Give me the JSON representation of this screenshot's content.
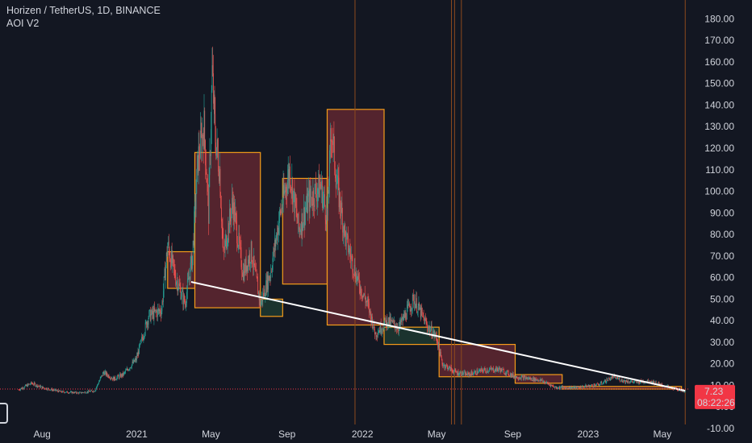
{
  "header": {
    "symbol_line": "Horizen / TetherUS, 1D, BINANCE",
    "indicator_name": "AOI V2"
  },
  "price_label": {
    "value": "7.23",
    "countdown": "08:22:26"
  },
  "colors": {
    "background": "#131722",
    "candle_up": "#26a69a",
    "candle_down": "#ef5350",
    "box_border": "#f59c1a",
    "box_fill_bear": "#6b2a33",
    "box_fill_bull": "#1f3d33",
    "price_badge": "#f23645",
    "trend_line": "#ffffff"
  },
  "icons": {
    "logo": "tradingview-logo-icon"
  },
  "chart_data": {
    "type": "candlestick",
    "title": "Horizen / TetherUS, 1D, BINANCE",
    "indicator": "AOI V2",
    "ylim": [
      -10,
      185
    ],
    "y_ticks": [
      "-10.00",
      "0.00",
      "10.00",
      "20.00",
      "30.00",
      "40.00",
      "50.00",
      "60.00",
      "70.00",
      "80.00",
      "90.00",
      "100.00",
      "110.00",
      "120.00",
      "130.00",
      "140.00",
      "150.00",
      "160.00",
      "170.00",
      "180.00"
    ],
    "x_ticks": [
      {
        "label": "Aug",
        "date": "2020-08-01"
      },
      {
        "label": "2021",
        "date": "2021-01-01"
      },
      {
        "label": "May",
        "date": "2021-05-01"
      },
      {
        "label": "Sep",
        "date": "2021-09-01"
      },
      {
        "label": "2022",
        "date": "2022-01-01"
      },
      {
        "label": "May",
        "date": "2022-05-01"
      },
      {
        "label": "Sep",
        "date": "2022-09-01"
      },
      {
        "label": "2023",
        "date": "2023-01-01"
      },
      {
        "label": "May",
        "date": "2023-05-01"
      }
    ],
    "x_range": [
      "2020-06-20",
      "2023-06-08"
    ],
    "last_price": 7.23,
    "current_price_line": 8.3,
    "price_path": [
      [
        "2020-06-24",
        8
      ],
      [
        "2020-07-15",
        11
      ],
      [
        "2020-08-01",
        9
      ],
      [
        "2020-09-01",
        7
      ],
      [
        "2020-10-01",
        6.5
      ],
      [
        "2020-10-25",
        7.5
      ],
      [
        "2020-11-08",
        16
      ],
      [
        "2020-11-25",
        13
      ],
      [
        "2020-12-10",
        15
      ],
      [
        "2020-12-31",
        22
      ],
      [
        "2021-01-20",
        42
      ],
      [
        "2021-02-10",
        45
      ],
      [
        "2021-02-20",
        75
      ],
      [
        "2021-03-05",
        60
      ],
      [
        "2021-03-20",
        48
      ],
      [
        "2021-04-01",
        70
      ],
      [
        "2021-04-10",
        115
      ],
      [
        "2021-04-20",
        130
      ],
      [
        "2021-04-27",
        90
      ],
      [
        "2021-05-03",
        155
      ],
      [
        "2021-05-08",
        125
      ],
      [
        "2021-05-15",
        110
      ],
      [
        "2021-05-21",
        70
      ],
      [
        "2021-06-05",
        95
      ],
      [
        "2021-06-22",
        62
      ],
      [
        "2021-07-05",
        72
      ],
      [
        "2021-07-20",
        48
      ],
      [
        "2021-08-05",
        62
      ],
      [
        "2021-08-20",
        88
      ],
      [
        "2021-09-05",
        110
      ],
      [
        "2021-09-20",
        82
      ],
      [
        "2021-10-05",
        95
      ],
      [
        "2021-10-25",
        103
      ],
      [
        "2021-11-05",
        88
      ],
      [
        "2021-11-12",
        130
      ],
      [
        "2021-11-20",
        105
      ],
      [
        "2021-12-05",
        78
      ],
      [
        "2021-12-25",
        58
      ],
      [
        "2022-01-10",
        47
      ],
      [
        "2022-01-22",
        34
      ],
      [
        "2022-02-10",
        40
      ],
      [
        "2022-03-01",
        37
      ],
      [
        "2022-03-25",
        50
      ],
      [
        "2022-04-15",
        38
      ],
      [
        "2022-05-01",
        32
      ],
      [
        "2022-05-10",
        20
      ],
      [
        "2022-06-01",
        16
      ],
      [
        "2022-06-20",
        15
      ],
      [
        "2022-07-15",
        17
      ],
      [
        "2022-08-10",
        17.5
      ],
      [
        "2022-09-05",
        14
      ],
      [
        "2022-10-15",
        12.5
      ],
      [
        "2022-11-10",
        9
      ],
      [
        "2022-12-15",
        9
      ],
      [
        "2023-01-20",
        10.5
      ],
      [
        "2023-02-10",
        14
      ],
      [
        "2023-03-01",
        12
      ],
      [
        "2023-03-20",
        11.5
      ],
      [
        "2023-04-10",
        12
      ],
      [
        "2023-05-01",
        10
      ],
      [
        "2023-05-20",
        8.5
      ],
      [
        "2023-06-07",
        7.23
      ]
    ],
    "zones": [
      {
        "start": "2021-02-20",
        "end": "2021-04-05",
        "top": 72,
        "bottom": 55,
        "dir": "bear"
      },
      {
        "start": "2021-04-05",
        "end": "2021-07-20",
        "top": 118,
        "bottom": 46,
        "dir": "bear"
      },
      {
        "start": "2021-07-20",
        "end": "2021-08-25",
        "top": 50,
        "bottom": 42,
        "dir": "bull"
      },
      {
        "start": "2021-08-25",
        "end": "2021-11-05",
        "top": 106,
        "bottom": 57,
        "dir": "bear"
      },
      {
        "start": "2021-11-05",
        "end": "2022-02-05",
        "top": 138,
        "bottom": 38,
        "dir": "bear"
      },
      {
        "start": "2022-02-05",
        "end": "2022-05-05",
        "top": 37,
        "bottom": 29,
        "dir": "bull"
      },
      {
        "start": "2022-05-05",
        "end": "2022-09-05",
        "top": 29,
        "bottom": 14,
        "dir": "bear"
      },
      {
        "start": "2022-09-05",
        "end": "2022-11-20",
        "top": 15,
        "bottom": 11,
        "dir": "bear"
      },
      {
        "start": "2022-11-20",
        "end": "2023-06-01",
        "top": 9.5,
        "bottom": 8.3,
        "dir": "bear"
      }
    ],
    "trend_line": [
      [
        "2021-03-30",
        58
      ],
      [
        "2023-06-07",
        7.5
      ]
    ],
    "vertical_lines": [
      "2021-12-20",
      "2022-05-25",
      "2022-05-30",
      "2022-06-10",
      "2023-06-07"
    ],
    "grid": false,
    "legend": "none"
  }
}
